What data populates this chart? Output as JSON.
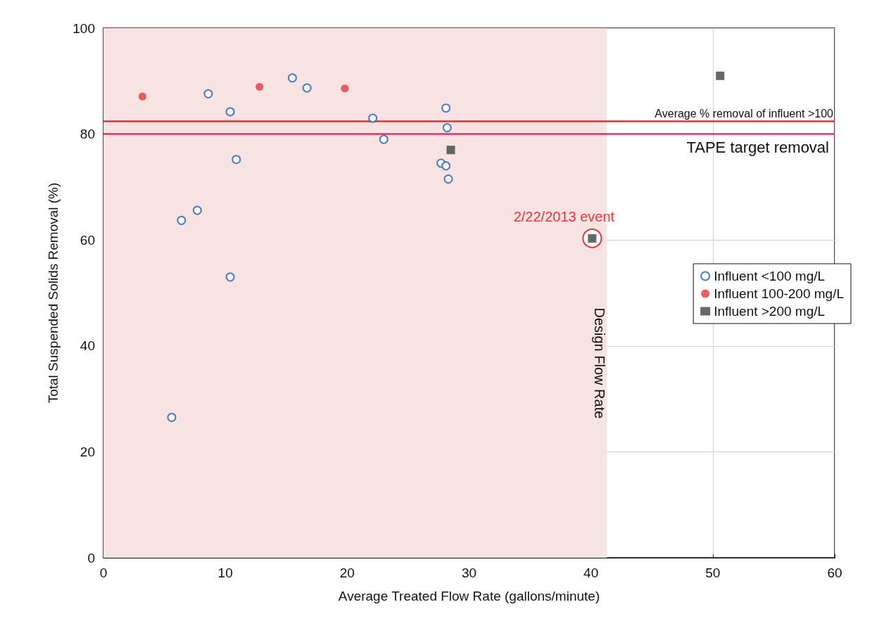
{
  "chart_data": {
    "type": "scatter",
    "xlabel": "Average Treated Flow Rate (gallons/minute)",
    "ylabel": "Total Suspended Solids Removal (%)",
    "xlim": [
      0,
      60
    ],
    "xticks": [
      0,
      10,
      20,
      30,
      40,
      50,
      60
    ],
    "ylim": [
      0,
      100
    ],
    "yticks": [
      0,
      20,
      40,
      60,
      80,
      100
    ],
    "grid": true,
    "legend": "right",
    "series": [
      {
        "name": "Influent <100 mg/L",
        "color": "#1f5fb0",
        "marker": "circle",
        "x": [
          5.6,
          6.4,
          7.7,
          8.6,
          10.4,
          10.4,
          10.9,
          15.5,
          16.7,
          22.1,
          23.0,
          28.1,
          28.2,
          27.7,
          28.1,
          28.3
        ],
        "values": [
          26.5,
          63.7,
          65.6,
          87.6,
          84.2,
          53.0,
          75.2,
          90.6,
          88.7,
          83.0,
          79.0,
          84.9,
          81.2,
          74.5,
          74.0,
          71.5
        ]
      },
      {
        "name": "Influent 100-200 mg/L",
        "color": "#e8363c",
        "marker": "circle",
        "x": [
          3.2,
          12.8,
          19.8
        ],
        "values": [
          87.1,
          88.9,
          88.6
        ]
      },
      {
        "name": "Influent >200 mg/L",
        "color": "#3d4446",
        "marker": "square",
        "x": [
          28.5,
          40.1,
          50.6
        ],
        "values": [
          77.0,
          60.3,
          91.0
        ]
      }
    ],
    "ref_lines": [
      {
        "axis": "y",
        "value": 82.5,
        "label": "Average % removal of influent >100",
        "color": "#e0303c"
      },
      {
        "axis": "y",
        "value": 80,
        "label": "TAPE target removal",
        "color": "#e0306e"
      }
    ],
    "bands": [
      {
        "axis": "x",
        "from": 0,
        "to": 41.3,
        "label": "Design Flow Rate",
        "color": "#f7e4e2"
      }
    ],
    "annotations": [
      {
        "text": "2/22/2013 event",
        "x": 40.1,
        "y": 60.3
      }
    ]
  }
}
